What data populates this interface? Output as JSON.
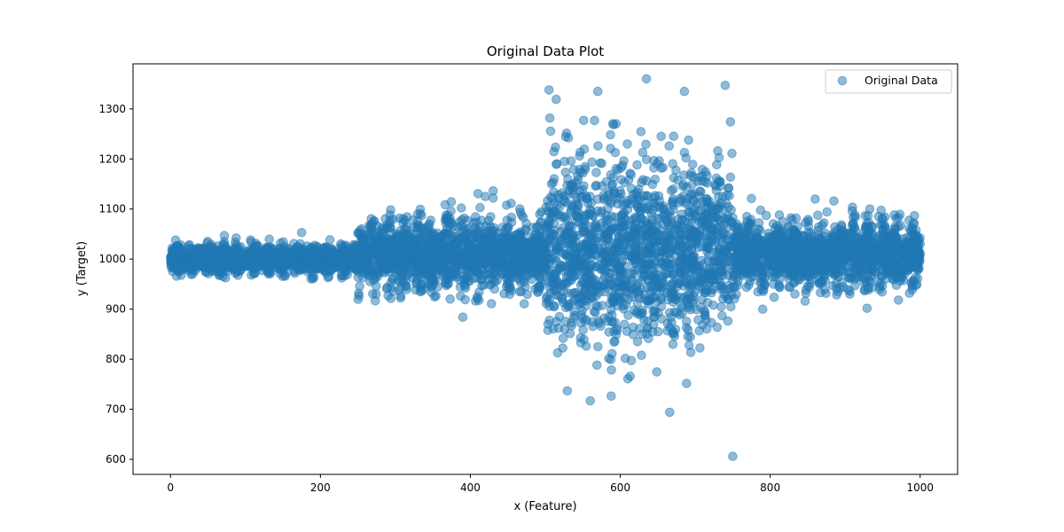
{
  "chart_data": {
    "type": "scatter",
    "title": "Original Data Plot",
    "xlabel": "x (Feature)",
    "ylabel": "y (Target)",
    "xlim": [
      -50,
      1050
    ],
    "ylim": [
      570,
      1390
    ],
    "xticks": [
      0,
      200,
      400,
      600,
      800,
      1000
    ],
    "yticks": [
      600,
      700,
      800,
      900,
      1000,
      1100,
      1200,
      1300
    ],
    "grid": false,
    "legend_position": "upper right",
    "marker_color": "#1f77b4",
    "marker_alpha": 0.5,
    "series": [
      {
        "name": "Original Data",
        "description_of_pattern": [
          {
            "x_range": [
              0,
              250
            ],
            "center": 1000,
            "approx_amplitude": 30
          },
          {
            "x_range": [
              250,
              500
            ],
            "center": 1010,
            "approx_amplitude": 80
          },
          {
            "x_range": [
              500,
              750
            ],
            "center": 1020,
            "approx_amplitude": 220
          },
          {
            "x_range": [
              750,
              1000
            ],
            "center": 1010,
            "approx_amplitude": 75
          }
        ],
        "notable_points": [
          {
            "x": 750,
            "y": 606
          },
          {
            "x": 635,
            "y": 1360
          },
          {
            "x": 505,
            "y": 1338
          },
          {
            "x": 570,
            "y": 1335
          },
          {
            "x": 740,
            "y": 1347
          },
          {
            "x": 666,
            "y": 694
          },
          {
            "x": 560,
            "y": 717
          },
          {
            "x": 390,
            "y": 884
          },
          {
            "x": 420,
            "y": 1125
          },
          {
            "x": 175,
            "y": 1053
          },
          {
            "x": 860,
            "y": 1120
          },
          {
            "x": 885,
            "y": 1116
          },
          {
            "x": 775,
            "y": 1121
          },
          {
            "x": 790,
            "y": 900
          }
        ]
      }
    ]
  }
}
